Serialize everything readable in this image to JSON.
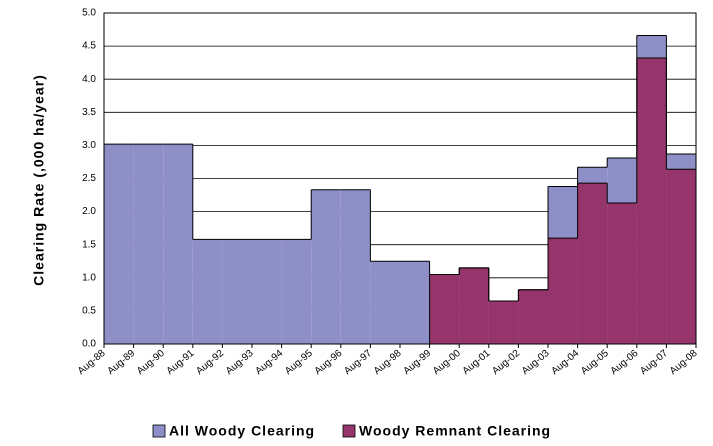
{
  "chart_data": {
    "type": "step-area",
    "y_label": "Clearing Rate (,000 ha/year)",
    "categories": [
      "Aug-88",
      "Aug-89",
      "Aug-90",
      "Aug-91",
      "Aug-92",
      "Aug-93",
      "Aug-94",
      "Aug-95",
      "Aug-96",
      "Aug-97",
      "Aug-98",
      "Aug-99",
      "Aug-00",
      "Aug-01",
      "Aug-02",
      "Aug-03",
      "Aug-04",
      "Aug-05",
      "Aug-06",
      "Aug-07",
      "Aug-08"
    ],
    "series": [
      {
        "name": "All Woody Clearing",
        "color": "#8e8fc6",
        "values": [
          3.02,
          3.02,
          3.02,
          1.58,
          1.58,
          1.58,
          1.58,
          2.33,
          2.33,
          1.25,
          1.25,
          1.05,
          1.15,
          0.65,
          0.82,
          2.38,
          2.67,
          2.81,
          4.66,
          2.87,
          null
        ]
      },
      {
        "name": "Woody Remnant Clearing",
        "color": "#96356b",
        "values": [
          null,
          null,
          null,
          null,
          null,
          null,
          null,
          null,
          null,
          null,
          null,
          1.05,
          1.15,
          0.65,
          0.82,
          1.6,
          2.43,
          2.13,
          4.32,
          2.64,
          null
        ]
      }
    ],
    "ylim": [
      0,
      5
    ],
    "yticks": [
      {
        "value": 0,
        "label": "0.0"
      },
      0.5,
      {
        "value": 1,
        "label": "1.0"
      },
      1.5,
      {
        "value": 2,
        "label": "2.0"
      },
      2.5,
      {
        "value": 3,
        "label": "3.0"
      },
      3.5,
      {
        "value": 4,
        "label": "4.0"
      },
      4.5,
      {
        "value": 5,
        "label": "5.0"
      }
    ],
    "grid": true,
    "legend": "bottom"
  }
}
